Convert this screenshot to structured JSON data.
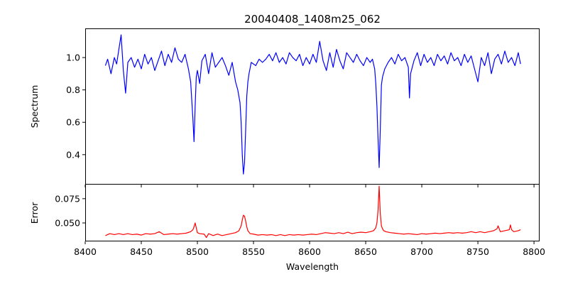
{
  "chart_data": {
    "type": "line",
    "title": "20040408_1408m25_062",
    "xlabel": "Wavelength",
    "xlim": [
      8400,
      8805
    ],
    "xticks": [
      8400,
      8450,
      8500,
      8550,
      8600,
      8650,
      8700,
      8750,
      8800
    ],
    "grid": false,
    "panels": [
      {
        "name": "spectrum",
        "ylabel": "Spectrum",
        "ylim": [
          0.215,
          1.18
        ],
        "yticks": [
          0.4,
          0.6,
          0.8,
          1.0
        ],
        "ytick_labels": [
          "0.4",
          "0.6",
          "0.8",
          "1.0"
        ],
        "color": "#0000ff",
        "x": [
          8418,
          8420,
          8423,
          8426,
          8428,
          8430,
          8432,
          8434,
          8436,
          8438,
          8441,
          8444,
          8447,
          8450,
          8453,
          8456,
          8459,
          8462,
          8465,
          8468,
          8471,
          8474,
          8477,
          8480,
          8483,
          8486,
          8489,
          8492,
          8494,
          8496,
          8497,
          8498,
          8499,
          8500,
          8502,
          8504,
          8507,
          8510,
          8513,
          8516,
          8519,
          8522,
          8525,
          8528,
          8531,
          8534,
          8536,
          8538,
          8539,
          8540,
          8541,
          8542,
          8543,
          8544,
          8545,
          8546,
          8548,
          8550,
          8552,
          8555,
          8558,
          8561,
          8564,
          8567,
          8570,
          8573,
          8576,
          8579,
          8582,
          8585,
          8588,
          8591,
          8594,
          8597,
          8600,
          8603,
          8606,
          8609,
          8612,
          8615,
          8618,
          8621,
          8624,
          8627,
          8630,
          8633,
          8636,
          8639,
          8642,
          8645,
          8648,
          8651,
          8654,
          8656,
          8658,
          8659,
          8660,
          8661,
          8662,
          8663,
          8664,
          8665,
          8667,
          8670,
          8673,
          8676,
          8679,
          8682,
          8685,
          8688,
          8689,
          8690,
          8693,
          8696,
          8699,
          8702,
          8705,
          8708,
          8711,
          8714,
          8717,
          8720,
          8723,
          8726,
          8729,
          8732,
          8735,
          8738,
          8741,
          8744,
          8747,
          8750,
          8753,
          8756,
          8759,
          8762,
          8765,
          8768,
          8771,
          8774,
          8777,
          8780,
          8783,
          8786,
          8788
        ],
        "y": [
          0.95,
          0.99,
          0.9,
          1.0,
          0.96,
          1.05,
          1.14,
          0.92,
          0.78,
          0.97,
          1.0,
          0.94,
          0.99,
          0.93,
          1.02,
          0.96,
          1.0,
          0.92,
          0.98,
          1.04,
          0.95,
          1.02,
          0.97,
          1.06,
          0.99,
          0.97,
          1.02,
          0.93,
          0.85,
          0.62,
          0.48,
          0.7,
          0.88,
          0.92,
          0.84,
          0.98,
          1.02,
          0.9,
          1.03,
          0.94,
          0.97,
          1.0,
          0.95,
          0.89,
          0.97,
          0.85,
          0.8,
          0.72,
          0.6,
          0.4,
          0.28,
          0.35,
          0.55,
          0.76,
          0.85,
          0.9,
          0.97,
          0.96,
          0.95,
          0.99,
          0.97,
          0.99,
          1.02,
          0.98,
          1.03,
          0.97,
          1.0,
          0.96,
          1.03,
          1.0,
          0.98,
          1.02,
          0.95,
          1.0,
          0.96,
          1.02,
          0.97,
          1.1,
          0.98,
          0.92,
          1.03,
          0.94,
          1.05,
          0.98,
          0.93,
          1.03,
          1.0,
          0.97,
          1.02,
          0.98,
          0.95,
          1.0,
          0.97,
          0.99,
          0.93,
          0.84,
          0.7,
          0.5,
          0.32,
          0.55,
          0.83,
          0.88,
          0.93,
          0.97,
          1.0,
          0.96,
          1.02,
          0.98,
          1.0,
          0.94,
          0.75,
          0.9,
          0.98,
          1.03,
          0.95,
          1.02,
          0.97,
          1.0,
          0.95,
          1.02,
          0.98,
          1.01,
          0.96,
          1.03,
          0.98,
          1.0,
          0.95,
          1.02,
          0.97,
          1.01,
          0.93,
          0.85,
          1.0,
          0.95,
          1.03,
          0.9,
          0.99,
          1.02,
          0.96,
          1.04,
          0.97,
          1.0,
          0.95,
          1.03,
          0.96
        ]
      },
      {
        "name": "error",
        "ylabel": "Error",
        "ylim": [
          0.031,
          0.0895
        ],
        "yticks": [
          0.05,
          0.075
        ],
        "ytick_labels": [
          "0.050",
          "0.075"
        ],
        "color": "#ff0000",
        "x": [
          8418,
          8422,
          8426,
          8430,
          8434,
          8438,
          8442,
          8446,
          8450,
          8454,
          8458,
          8462,
          8466,
          8470,
          8474,
          8478,
          8482,
          8486,
          8490,
          8494,
          8496,
          8497,
          8498,
          8499,
          8500,
          8502,
          8506,
          8508,
          8510,
          8514,
          8518,
          8522,
          8526,
          8530,
          8534,
          8537,
          8539,
          8540,
          8541,
          8542,
          8543,
          8544,
          8545,
          8547,
          8550,
          8554,
          8558,
          8562,
          8566,
          8570,
          8574,
          8578,
          8582,
          8586,
          8590,
          8594,
          8598,
          8602,
          8606,
          8610,
          8614,
          8618,
          8622,
          8626,
          8630,
          8634,
          8638,
          8642,
          8646,
          8650,
          8654,
          8657,
          8659,
          8660,
          8661,
          8662,
          8663,
          8664,
          8665,
          8666,
          8668,
          8672,
          8676,
          8680,
          8684,
          8688,
          8692,
          8696,
          8700,
          8704,
          8708,
          8712,
          8716,
          8720,
          8724,
          8728,
          8732,
          8736,
          8740,
          8744,
          8748,
          8752,
          8756,
          8760,
          8764,
          8767,
          8768,
          8770,
          8774,
          8778,
          8779,
          8780,
          8782,
          8786,
          8788
        ],
        "y": [
          0.037,
          0.039,
          0.038,
          0.039,
          0.038,
          0.039,
          0.038,
          0.0385,
          0.0375,
          0.039,
          0.0385,
          0.039,
          0.041,
          0.038,
          0.0385,
          0.039,
          0.0385,
          0.039,
          0.0395,
          0.041,
          0.043,
          0.046,
          0.05,
          0.045,
          0.04,
          0.039,
          0.0385,
          0.035,
          0.039,
          0.037,
          0.0385,
          0.037,
          0.038,
          0.039,
          0.04,
          0.042,
          0.047,
          0.053,
          0.058,
          0.057,
          0.052,
          0.046,
          0.042,
          0.039,
          0.0385,
          0.0375,
          0.038,
          0.0375,
          0.038,
          0.037,
          0.038,
          0.037,
          0.038,
          0.0375,
          0.038,
          0.0375,
          0.038,
          0.0385,
          0.038,
          0.039,
          0.04,
          0.0395,
          0.039,
          0.04,
          0.039,
          0.0405,
          0.039,
          0.04,
          0.0405,
          0.04,
          0.041,
          0.042,
          0.045,
          0.05,
          0.063,
          0.088,
          0.06,
          0.047,
          0.044,
          0.042,
          0.041,
          0.04,
          0.0395,
          0.039,
          0.0385,
          0.039,
          0.0385,
          0.038,
          0.039,
          0.0385,
          0.039,
          0.0395,
          0.039,
          0.0395,
          0.04,
          0.0395,
          0.04,
          0.0395,
          0.04,
          0.041,
          0.04,
          0.041,
          0.04,
          0.041,
          0.042,
          0.044,
          0.047,
          0.041,
          0.042,
          0.043,
          0.048,
          0.043,
          0.041,
          0.042,
          0.043
        ]
      }
    ]
  }
}
